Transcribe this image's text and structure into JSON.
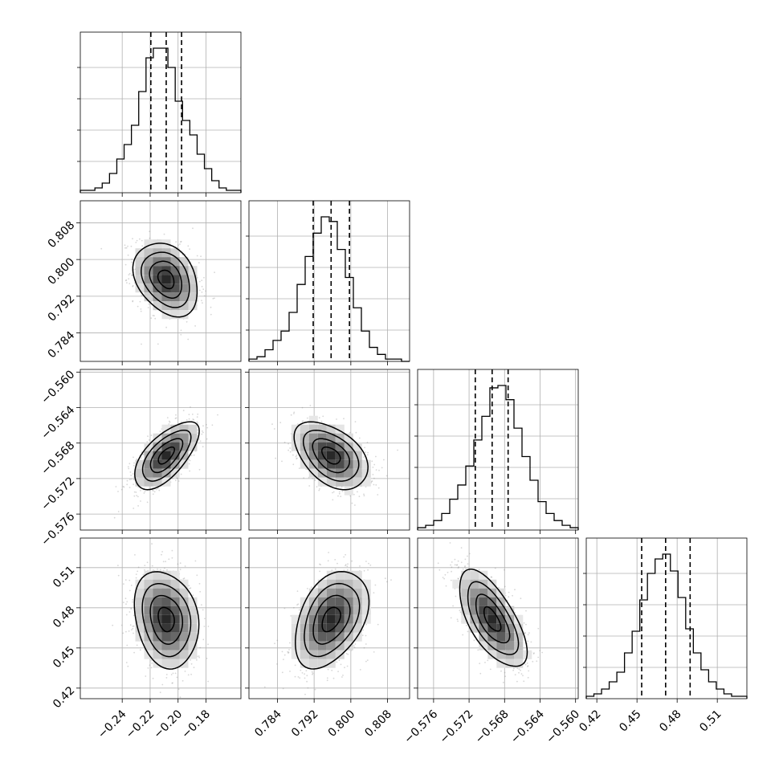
{
  "chart_data": {
    "type": "corner",
    "title": "",
    "grid": true,
    "parameters": [
      {
        "index": 0,
        "range": [
          -0.27,
          -0.155
        ],
        "ticks": [
          -0.24,
          -0.22,
          -0.2,
          -0.18
        ],
        "tick_labels": [
          "−0.24",
          "−0.22",
          "−0.20",
          "−0.18"
        ],
        "quantiles": [
          -0.2195,
          -0.2085,
          -0.1975
        ],
        "mean": -0.2085,
        "sd": 0.0115
      },
      {
        "index": 1,
        "range": [
          0.7778,
          0.8128
        ],
        "ticks": [
          0.784,
          0.792,
          0.8,
          0.808
        ],
        "tick_labels": [
          "0.784",
          "0.792",
          "0.800",
          "0.808"
        ],
        "quantiles": [
          0.7918,
          0.7957,
          0.7997
        ],
        "mean": 0.7957,
        "sd": 0.004
      },
      {
        "index": 2,
        "range": [
          -0.5778,
          -0.5597
        ],
        "ticks": [
          -0.576,
          -0.572,
          -0.568,
          -0.564,
          -0.56
        ],
        "tick_labels": [
          "−0.576",
          "−0.572",
          "−0.568",
          "−0.564",
          "−0.560"
        ],
        "quantiles": [
          -0.5713,
          -0.5694,
          -0.5676
        ],
        "mean": -0.5694,
        "sd": 0.0019
      },
      {
        "index": 3,
        "range": [
          0.4121,
          0.5321
        ],
        "ticks": [
          0.42,
          0.45,
          0.48,
          0.51
        ],
        "tick_labels": [
          "0.42",
          "0.45",
          "0.48",
          "0.51"
        ],
        "quantiles": [
          0.4535,
          0.4714,
          0.4897
        ],
        "mean": 0.4714,
        "sd": 0.0181
      }
    ],
    "correlations": [
      {
        "pair": [
          1,
          0
        ],
        "rho": -0.3
      },
      {
        "pair": [
          2,
          0
        ],
        "rho": 0.65
      },
      {
        "pair": [
          2,
          1
        ],
        "rho": -0.45
      },
      {
        "pair": [
          3,
          0
        ],
        "rho": -0.2
      },
      {
        "pair": [
          3,
          1
        ],
        "rho": 0.4
      },
      {
        "pair": [
          3,
          2
        ],
        "rho": -0.65
      }
    ],
    "histograms": [
      [
        1,
        1,
        2,
        4,
        8,
        14,
        20,
        28,
        42,
        56,
        60,
        60,
        52,
        38,
        30,
        24,
        16,
        10,
        5,
        2,
        1,
        1
      ],
      [
        1,
        2,
        5,
        9,
        13,
        21,
        33,
        45,
        55,
        62,
        60,
        48,
        36,
        23,
        13,
        6,
        3,
        1,
        1,
        0
      ],
      [
        1,
        2,
        4,
        7,
        13,
        19,
        27,
        38,
        48,
        60,
        61,
        55,
        43,
        31,
        21,
        12,
        7,
        4,
        2,
        1
      ],
      [
        1,
        2,
        4,
        7,
        11,
        19,
        28,
        41,
        52,
        58,
        60,
        53,
        42,
        29,
        19,
        12,
        7,
        4,
        2,
        1,
        1
      ]
    ],
    "contour_levels_sigma": [
      0.5,
      1.0,
      1.5,
      2.0
    ]
  }
}
